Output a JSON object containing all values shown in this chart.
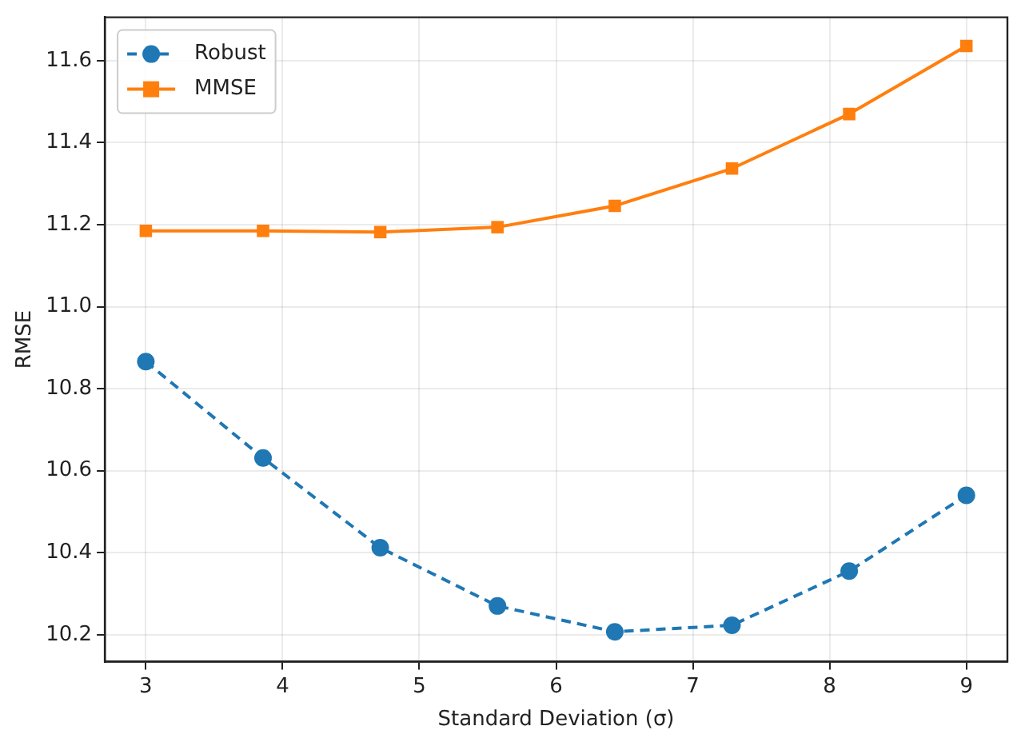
{
  "chart_data": {
    "type": "line",
    "xlabel": "Standard Deviation (σ)",
    "ylabel": "RMSE",
    "x": [
      3,
      3.857,
      4.714,
      5.571,
      6.429,
      7.286,
      8.143,
      9
    ],
    "series": [
      {
        "name": "Robust",
        "color": "#1f77b4",
        "marker": "circle",
        "line_style": "dashed",
        "values": [
          10.866,
          10.631,
          10.412,
          10.27,
          10.207,
          10.223,
          10.355,
          10.54
        ]
      },
      {
        "name": "MMSE",
        "color": "#ff7f0e",
        "marker": "square",
        "line_style": "solid",
        "values": [
          11.185,
          11.185,
          11.182,
          11.194,
          11.246,
          11.337,
          11.47,
          11.636
        ]
      }
    ],
    "xlim": [
      2.7,
      9.3
    ],
    "xticks": [
      3,
      4,
      5,
      6,
      7,
      8,
      9
    ],
    "ylim": [
      10.134,
      11.706
    ],
    "yticks": [
      {
        "value": 10.2,
        "label": "10.2"
      },
      {
        "value": 10.4,
        "label": "10.4"
      },
      {
        "value": 10.6,
        "label": "10.6"
      },
      {
        "value": 10.8,
        "label": "10.8"
      },
      {
        "value": 11.0,
        "label": "11.0"
      },
      {
        "value": 11.2,
        "label": "11.2"
      },
      {
        "value": 11.4,
        "label": "11.4"
      },
      {
        "value": 11.6,
        "label": "11.6"
      }
    ],
    "grid": true,
    "legend": "top left"
  }
}
